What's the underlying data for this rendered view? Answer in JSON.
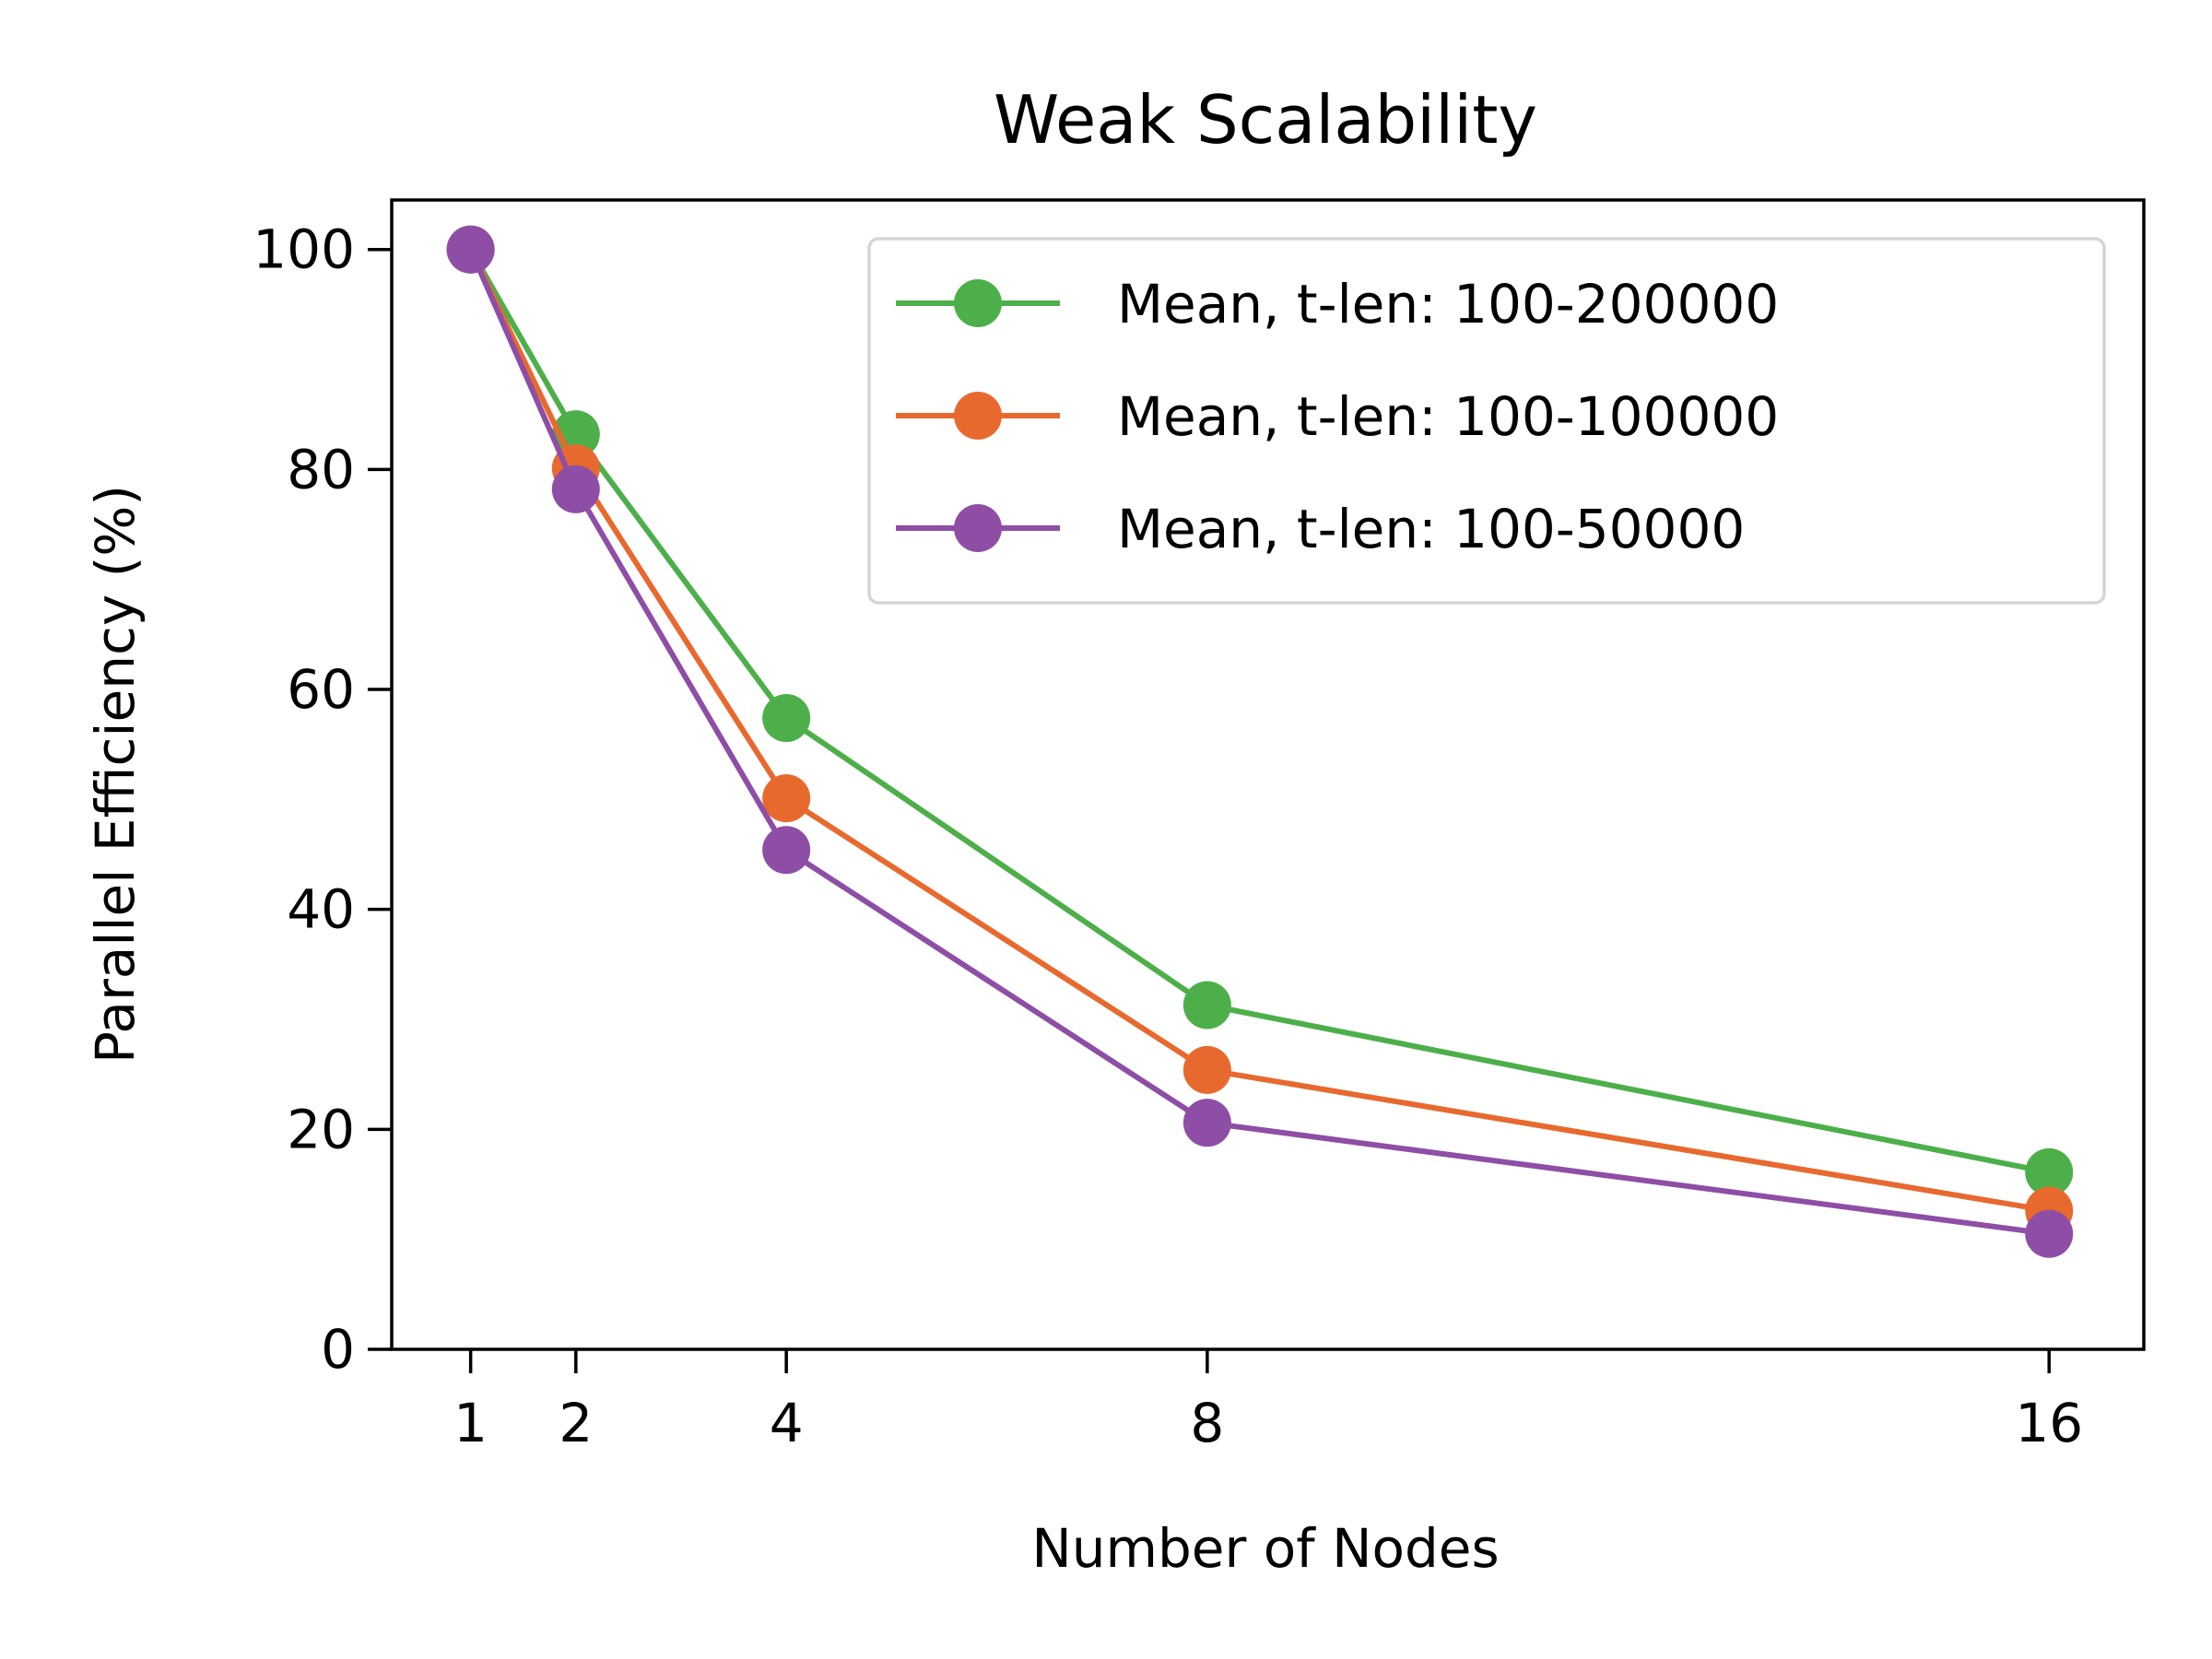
{
  "chart_data": {
    "type": "line",
    "title": "Weak Scalability",
    "xlabel": "Number of Nodes",
    "ylabel": "Parallel Efficiency (%)",
    "xlim": [
      0.25,
      16.9
    ],
    "ylim": [
      0,
      104.5
    ],
    "x_ticks": [
      1,
      2,
      4,
      8,
      16
    ],
    "x_tick_labels": [
      "1",
      "2",
      "4",
      "8",
      "16"
    ],
    "y_ticks": [
      0,
      20,
      40,
      60,
      80,
      100
    ],
    "y_tick_labels": [
      "0",
      "20",
      "40",
      "60",
      "80",
      "100"
    ],
    "grid": false,
    "legend_position": "top-right",
    "x": [
      1,
      2,
      4,
      8,
      16
    ],
    "series": [
      {
        "name": "Mean, t-len: 100-200000",
        "color": "#4daf4a",
        "values": [
          100,
          83.2,
          57.4,
          31.3,
          16.1
        ]
      },
      {
        "name": "Mean, t-len: 100-100000",
        "color": "#e8692e",
        "values": [
          100,
          80.1,
          50.1,
          25.4,
          12.6
        ]
      },
      {
        "name": "Mean, t-len: 100-50000",
        "color": "#8e4ea6",
        "values": [
          100,
          78.2,
          45.4,
          20.6,
          10.5
        ]
      }
    ]
  }
}
